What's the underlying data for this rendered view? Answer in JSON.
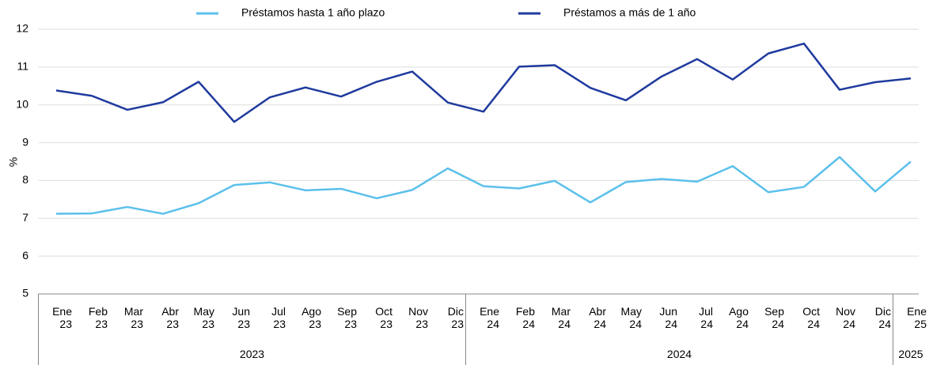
{
  "chart_data": {
    "type": "line",
    "categories": [
      "Ene 23",
      "Feb 23",
      "Mar 23",
      "Abr 23",
      "May 23",
      "Jun 23",
      "Jul 23",
      "Ago 23",
      "Sep 23",
      "Oct 23",
      "Nov 23",
      "Dic 23",
      "Ene 24",
      "Feb 24",
      "Mar 24",
      "Abr 24",
      "May 24",
      "Jun 24",
      "Jul 24",
      "Ago 24",
      "Sep 24",
      "Oct 24",
      "Nov 24",
      "Dic 24",
      "Ene 25"
    ],
    "x_groups": [
      {
        "label": "2023",
        "count": 12
      },
      {
        "label": "2024",
        "count": 12
      },
      {
        "label": "2025",
        "count": 1
      }
    ],
    "series": [
      {
        "name": "Préstamos hasta 1 año plazo",
        "color": "#5bc0eb",
        "values": [
          7.12,
          7.13,
          7.3,
          7.12,
          7.4,
          7.88,
          7.95,
          7.74,
          7.78,
          7.53,
          7.75,
          8.32,
          7.85,
          7.79,
          7.99,
          7.42,
          7.96,
          8.04,
          7.97,
          8.38,
          7.69,
          7.83,
          8.62,
          7.71,
          8.5
        ]
      },
      {
        "name": "Préstamos a más de 1 año",
        "color": "#1f3a9e",
        "values": [
          10.38,
          10.24,
          9.87,
          10.07,
          10.61,
          9.55,
          10.2,
          10.46,
          10.22,
          10.61,
          10.88,
          10.06,
          9.82,
          11.01,
          11.05,
          10.45,
          10.12,
          10.75,
          11.21,
          10.67,
          11.36,
          11.62,
          10.4,
          10.6,
          10.7
        ]
      }
    ],
    "y_label": "%",
    "ylim": [
      5,
      12
    ],
    "yticks": [
      5,
      6,
      7,
      8,
      9,
      10,
      11,
      12
    ],
    "grid": true,
    "legend": "top"
  }
}
